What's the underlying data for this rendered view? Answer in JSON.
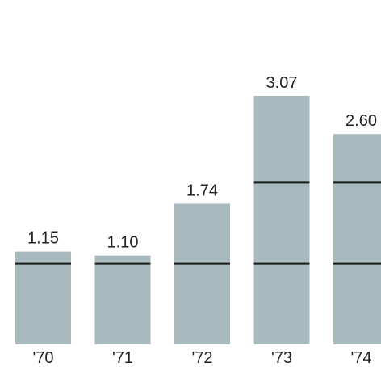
{
  "chart_data": {
    "type": "bar",
    "categories": [
      "'70",
      "'71",
      "'72",
      "'73",
      "'74"
    ],
    "values": [
      1.15,
      1.1,
      1.74,
      3.07,
      2.6
    ],
    "value_labels": [
      "1.15",
      "1.10",
      "1.74",
      "3.07",
      "2.60"
    ],
    "reference_lines": [
      1.0,
      2.0
    ],
    "ylim": [
      0,
      3.07
    ],
    "title": "",
    "xlabel": "",
    "ylabel": "",
    "grid": false,
    "colors": {
      "bar": "#a9babf",
      "reference_line": "#1a1a1a",
      "text": "#222222"
    }
  }
}
